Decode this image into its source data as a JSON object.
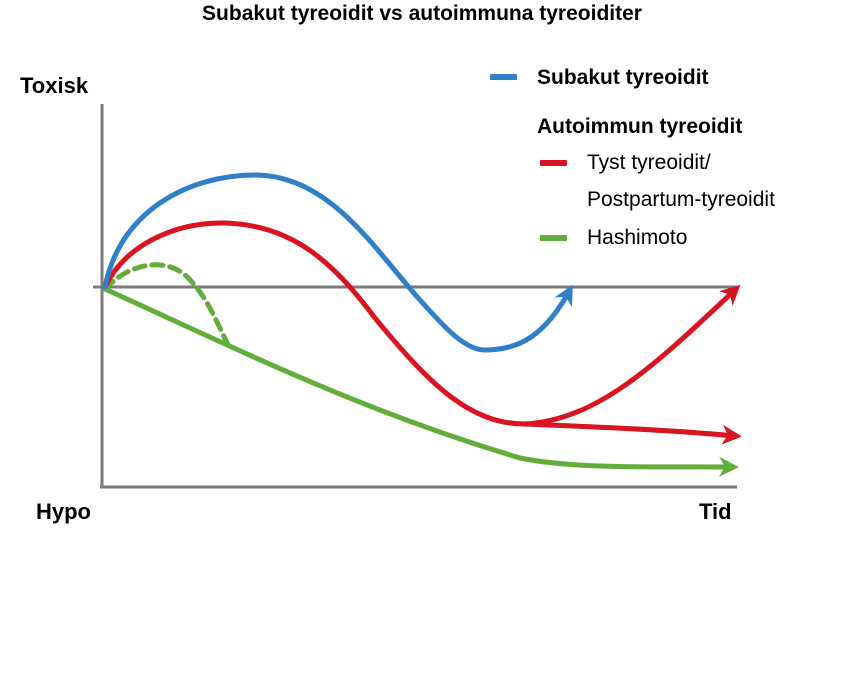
{
  "title": "Subakut tyreoidit vs autoimmuna tyreoiditer",
  "axes": {
    "y_top_label": "Toxisk",
    "y_bottom_label": "Hypo",
    "x_end_label": "Tid",
    "axis_color": "#7a7a7a"
  },
  "legend": {
    "subacute": {
      "label": "Subakut tyreoidit",
      "color": "#2f80c8"
    },
    "autoimmune_heading": "Autoimmun tyreoidit",
    "silent": {
      "label_line1": "Tyst tyreoidit/",
      "label_line2": "Postpartum-tyreoidit",
      "color": "#d9131f"
    },
    "hashimoto": {
      "label": "Hashimoto",
      "color": "#62ad3a"
    }
  }
}
